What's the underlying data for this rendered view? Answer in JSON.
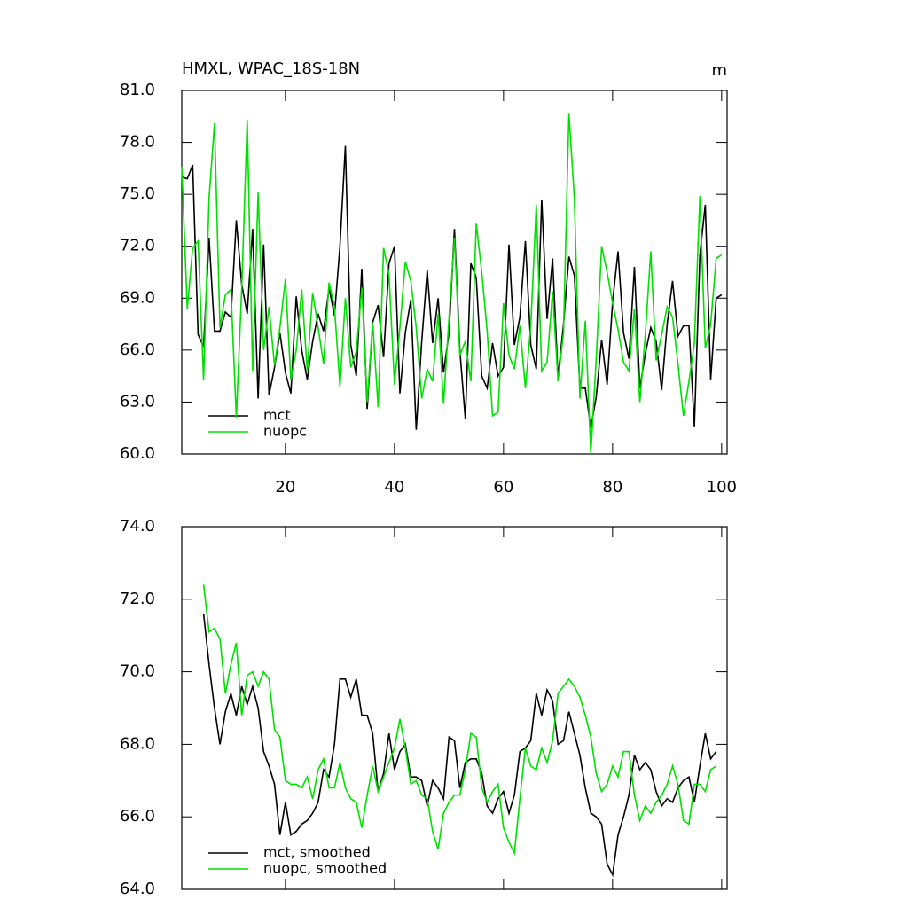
{
  "chart_data": [
    {
      "type": "line",
      "title": "HMXL, WPAC_18S-18N",
      "units": "m",
      "x": [
        1,
        2,
        3,
        4,
        5,
        6,
        7,
        8,
        9,
        10,
        11,
        12,
        13,
        14,
        15,
        16,
        17,
        18,
        19,
        20,
        21,
        22,
        23,
        24,
        25,
        26,
        27,
        28,
        29,
        30,
        31,
        32,
        33,
        34,
        35,
        36,
        37,
        38,
        39,
        40,
        41,
        42,
        43,
        44,
        45,
        46,
        47,
        48,
        49,
        50,
        51,
        52,
        53,
        54,
        55,
        56,
        57,
        58,
        59,
        60,
        61,
        62,
        63,
        64,
        65,
        66,
        67,
        68,
        69,
        70,
        71,
        72,
        73,
        74,
        75,
        76,
        77,
        78,
        79,
        80,
        81,
        82,
        83,
        84,
        85,
        86,
        87,
        88,
        89,
        90,
        91,
        92,
        93,
        94,
        95,
        96,
        97,
        98,
        99,
        100
      ],
      "series": [
        {
          "name": "mct",
          "color": "#000000",
          "values": [
            76.0,
            75.9,
            76.7,
            66.9,
            66.2,
            72.5,
            67.1,
            67.1,
            68.2,
            67.9,
            73.5,
            69.8,
            68.1,
            73.0,
            63.2,
            72.1,
            63.4,
            65.0,
            67.0,
            64.7,
            63.5,
            69.1,
            66.0,
            64.3,
            66.5,
            68.1,
            67.1,
            69.6,
            68.0,
            72.0,
            77.8,
            66.3,
            64.5,
            70.7,
            62.6,
            67.6,
            68.6,
            65.6,
            71.0,
            72.0,
            63.5,
            67.0,
            68.9,
            61.4,
            66.5,
            70.6,
            66.4,
            69.0,
            64.7,
            67.0,
            73.0,
            66.0,
            62.0,
            71.0,
            70.2,
            64.5,
            63.8,
            66.4,
            64.5,
            65.0,
            72.1,
            66.3,
            67.9,
            72.3,
            66.3,
            64.9,
            74.7,
            67.8,
            71.3,
            64.4,
            67.5,
            71.4,
            70.3,
            63.8,
            63.8,
            61.5,
            63.3,
            66.6,
            64.0,
            68.8,
            71.7,
            67.0,
            65.5,
            70.8,
            63.8,
            65.8,
            67.3,
            66.5,
            63.7,
            67.5,
            70.0,
            66.8,
            67.4,
            67.4,
            61.6,
            71.5,
            74.4,
            64.3,
            69.0,
            69.2
          ]
        },
        {
          "name": "nuopc",
          "color": "#00e000",
          "values": [
            76.6,
            68.4,
            71.9,
            72.3,
            64.3,
            74.8,
            79.1,
            67.3,
            69.2,
            69.5,
            62.1,
            69.5,
            79.3,
            64.8,
            75.1,
            66.0,
            68.5,
            65.1,
            67.3,
            70.1,
            64.3,
            66.0,
            69.5,
            64.8,
            69.3,
            67.3,
            65.2,
            69.9,
            68.5,
            63.9,
            69.0,
            65.0,
            65.9,
            69.6,
            63.0,
            67.6,
            62.7,
            71.9,
            70.4,
            64.0,
            67.3,
            71.1,
            70.0,
            67.3,
            63.2,
            64.9,
            64.2,
            68.1,
            62.9,
            67.9,
            72.5,
            65.7,
            66.5,
            64.2,
            73.3,
            70.5,
            67.1,
            62.2,
            62.4,
            68.7,
            65.7,
            64.9,
            67.4,
            63.8,
            67.4,
            74.4,
            64.8,
            65.3,
            69.4,
            64.2,
            67.0,
            79.7,
            74.7,
            63.2,
            67.7,
            60.0,
            65.5,
            72.0,
            70.5,
            68.7,
            67.2,
            65.3,
            64.8,
            68.4,
            63.0,
            66.9,
            71.7,
            65.4,
            66.9,
            68.5,
            67.9,
            65.2,
            62.2,
            64.2,
            66.4,
            74.9,
            66.1,
            67.5,
            71.3,
            71.5
          ]
        }
      ],
      "xlim": [
        1,
        101
      ],
      "xticks": [
        20,
        40,
        60,
        80,
        100
      ],
      "ylim": [
        60,
        81
      ],
      "yticks": [
        {
          "value": 60,
          "label": "60.0"
        },
        {
          "value": 63,
          "label": "63.0"
        },
        {
          "value": 66,
          "label": "66.0"
        },
        {
          "value": 69,
          "label": "69.0"
        },
        {
          "value": 72,
          "label": "72.0"
        },
        {
          "value": 75,
          "label": "75.0"
        },
        {
          "value": 78,
          "label": "78.0"
        },
        {
          "value": 81,
          "label": "81.0"
        }
      ]
    },
    {
      "type": "line",
      "x": [
        5,
        6,
        7,
        8,
        9,
        10,
        11,
        12,
        13,
        14,
        15,
        16,
        17,
        18,
        19,
        20,
        21,
        22,
        23,
        24,
        25,
        26,
        27,
        28,
        29,
        30,
        31,
        32,
        33,
        34,
        35,
        36,
        37,
        38,
        39,
        40,
        41,
        42,
        43,
        44,
        45,
        46,
        47,
        48,
        49,
        50,
        51,
        52,
        53,
        54,
        55,
        56,
        57,
        58,
        59,
        60,
        61,
        62,
        63,
        64,
        65,
        66,
        67,
        68,
        69,
        70,
        71,
        72,
        73,
        74,
        75,
        76,
        77,
        78,
        79,
        80,
        81,
        82,
        83,
        84,
        85,
        86,
        87,
        88,
        89,
        90,
        91,
        92,
        93,
        94,
        95,
        96,
        97,
        98,
        99
      ],
      "series": [
        {
          "name": "mct, smoothed",
          "color": "#000000",
          "values": [
            71.6,
            70.2,
            69.0,
            68.0,
            68.9,
            69.4,
            68.8,
            69.6,
            69.1,
            69.6,
            69.0,
            67.8,
            67.4,
            66.9,
            65.5,
            66.4,
            65.5,
            65.6,
            65.8,
            65.9,
            66.1,
            66.4,
            67.3,
            67.1,
            68.0,
            69.8,
            69.8,
            69.3,
            69.8,
            68.8,
            68.8,
            68.3,
            66.7,
            67.2,
            68.3,
            67.3,
            67.8,
            68.0,
            67.1,
            67.1,
            67.0,
            66.3,
            67.0,
            66.8,
            66.5,
            68.2,
            68.1,
            66.8,
            67.5,
            67.6,
            67.6,
            67.2,
            66.3,
            66.1,
            66.5,
            66.7,
            66.1,
            66.6,
            67.8,
            67.9,
            68.1,
            69.4,
            68.8,
            69.5,
            69.2,
            68.0,
            68.1,
            68.9,
            68.3,
            67.7,
            66.8,
            66.1,
            66.0,
            65.8,
            64.7,
            64.4,
            65.5,
            66.0,
            66.6,
            67.7,
            67.3,
            67.5,
            67.3,
            66.7,
            66.3,
            66.5,
            66.4,
            66.8,
            67.0,
            67.1,
            66.4,
            67.4,
            68.3,
            67.6,
            67.8
          ]
        },
        {
          "name": "nuopc, smoothed",
          "color": "#00e000",
          "values": [
            72.4,
            71.1,
            71.2,
            70.9,
            69.4,
            70.2,
            70.8,
            68.8,
            69.9,
            70.0,
            69.6,
            70.0,
            69.8,
            68.4,
            68.2,
            67.0,
            66.9,
            66.9,
            66.8,
            67.1,
            66.5,
            67.3,
            67.6,
            66.8,
            66.8,
            67.5,
            66.8,
            66.5,
            66.4,
            65.7,
            66.6,
            67.4,
            66.7,
            67.1,
            67.5,
            67.9,
            68.7,
            67.9,
            66.9,
            67.0,
            66.6,
            66.5,
            65.6,
            65.1,
            66.1,
            66.4,
            66.6,
            66.6,
            67.3,
            68.3,
            68.2,
            66.8,
            66.4,
            66.7,
            66.9,
            65.7,
            65.3,
            65.0,
            66.5,
            67.9,
            67.4,
            67.3,
            67.9,
            67.5,
            68.1,
            69.4,
            69.6,
            69.8,
            69.6,
            69.3,
            68.8,
            68.2,
            67.2,
            66.7,
            66.9,
            67.4,
            67.1,
            67.8,
            67.8,
            66.6,
            65.9,
            66.3,
            66.1,
            66.4,
            66.6,
            66.9,
            67.4,
            66.9,
            65.9,
            65.8,
            66.9,
            66.9,
            66.7,
            67.3,
            67.4
          ]
        }
      ],
      "xlim": [
        1,
        101
      ],
      "xticks": [
        20,
        40,
        60,
        80,
        100
      ],
      "ylim": [
        64,
        74
      ],
      "yticks": [
        {
          "value": 64,
          "label": "64.0"
        },
        {
          "value": 66,
          "label": "66.0"
        },
        {
          "value": 68,
          "label": "68.0"
        },
        {
          "value": 70,
          "label": "70.0"
        },
        {
          "value": 72,
          "label": "72.0"
        },
        {
          "value": 74,
          "label": "74.0"
        }
      ]
    }
  ]
}
